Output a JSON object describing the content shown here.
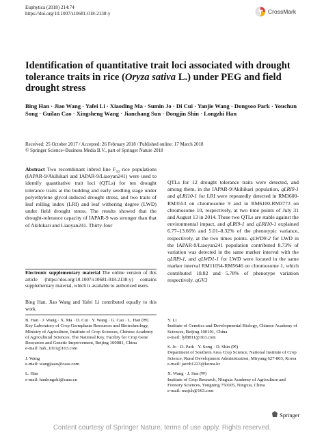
{
  "header": {
    "journal": "Euphytica (2018) 214:74",
    "doi": "https://doi.org/10.1007/s10681-018-2138-y",
    "crossmark": "CrossMark"
  },
  "title": [
    {
      "text": "Identification of quantitative trait loci associated with drought tolerance traits in rice ("
    },
    {
      "text": "Oryza sativa",
      "italic": true
    },
    {
      "text": " L.) under PEG and field drought stress"
    }
  ],
  "authors": "Bing Han · Jiao Wang · Yafei Li · Xiaoding Ma · Sumin Jo · Di Cui · Yanjie Wang · Dongsoo Park · Youchun Song · Guilan Cao · Xingsheng Wang · Jianchang Sun · Dongjin Shin · Longzhi Han",
  "dates": "Received: 25 October 2017 / Accepted: 26 February 2018 / Published online: 17 March 2018",
  "copyright": "© Springer Science+Business Media B.V., part of Springer Nature 2018",
  "abstract": [
    {
      "text": "Abstract",
      "bold": true
    },
    {
      "text": "  Two recombinant inbred line F"
    },
    {
      "text": "10",
      "sub": true
    },
    {
      "text": " rice populations (IAPAR-9/Akihikari and IAPAR-9/Liaoyan241) were used to identify quantitative trait loci (QTLs) for ten drought tolerance traits at the budding and early seedling stage under polyethylene glycol-induced drought stress, and two traits of leaf rolling index (LRI) and leaf withering degree (LWD) under field drought stress. The results showed that the drought-tolerance capacity of IAPAR-9 was stronger than that of Akihikari and Liaoyan241. Thirty-four"
    }
  ],
  "abstract_cont": [
    {
      "text": "QTLs for 12 drought tolerance traits were detected, and among them, in the IAPAR-9/Akihikari population, "
    },
    {
      "text": "qLRI9-1",
      "italic": true
    },
    {
      "text": " and "
    },
    {
      "text": "qLRI10-1",
      "italic": true
    },
    {
      "text": " for LRI were repeatedly detected in RM3600-RM3553 on chromosome 9 and in RM6100-RM3773 on chromosome 10, respectively, at two time points of July 31 and August 13 in 2014. These two QTLs are stable against the environmental impact, and "
    },
    {
      "text": "qLRI9-1",
      "italic": true
    },
    {
      "text": " and "
    },
    {
      "text": "qLRI10-1",
      "italic": true
    },
    {
      "text": " explained 6.77–13.66% and 5.01–8.32% of the phenotypic variance, respectively, at the two times points. "
    },
    {
      "text": "qLWD9-2",
      "italic": true
    },
    {
      "text": " for LWD in the IAPAR-9/Liaoyan241 population contributed 8.73% of variation was detected in the same marker interval with the "
    },
    {
      "text": "qLRI9-1",
      "italic": true
    },
    {
      "text": ", and "
    },
    {
      "text": "qLWD1-1",
      "italic": true
    },
    {
      "text": " for LWD were located in the same marker interval RM11054-RM5646 on chromosome 1, which contributed 18.82 and 5.78% of phenotype variation respectively. "
    },
    {
      "text": "qGV3",
      "italic": true
    }
  ],
  "esm": [
    {
      "text": "Electronic supplementary material",
      "bold": true
    },
    {
      "text": "  The online version of this article (https://doi.org/10.1007/s10681-018-2138-y) contains supplementary material, which is available to authorized users."
    }
  ],
  "equal_contribution": "Bing Han, Jiao Wang and Yafei Li contributed equally to this work.",
  "affiliations_left": [
    {
      "names": "B. Han · J. Wang · X. Ma · D. Cui · Y. Wang · G. Cao · L. Han (✉)",
      "address": "Key Laboratory of Crop Germplasm Resources and Biotechnology, Ministry of Agriculture, Institute of Crop Sciences, Chinese Academy of Agricultural Sciences. The National Key, Facility for Crop Gene Resources and Genetic Improvement, Beijing 100081, China",
      "email": "e-mail: hab_1011@163.com"
    },
    {
      "names": "J. Wang",
      "email": "e-mail: wangjiaao@caas.com"
    },
    {
      "names": "L. Han",
      "email": "e-mail: hanlongzhi@caas.cn"
    }
  ],
  "affiliations_right": [
    {
      "names": "Y. Li",
      "address": "Institute of Genetics and Developmental Biology, Chinese Academy of Sciences, Beijing 100101, China",
      "email": "e-mail: lyf8811@163.com"
    },
    {
      "names": "S. Jo · D. Park · Y. Song · D. Shin (✉)",
      "address": "Department of Southern Area Crop Science, National Institute of Crop Science, Rural Development Administration, Miryang 627-803, Korea",
      "email": "e-mail: jacob1223@korea.kr"
    },
    {
      "names": "X. Wang · J. Sun (✉)",
      "address": "Institute of Crop Research, Ningxia Academy of Agriculture and Forestry Sciences, Yongning 750105, Ningxia, China",
      "email": "e-mail: nxsjch@163.com"
    }
  ],
  "publisher": "Springer",
  "watermark": "Content courtesy of Springer Nature, terms of use apply. Rights reserved."
}
